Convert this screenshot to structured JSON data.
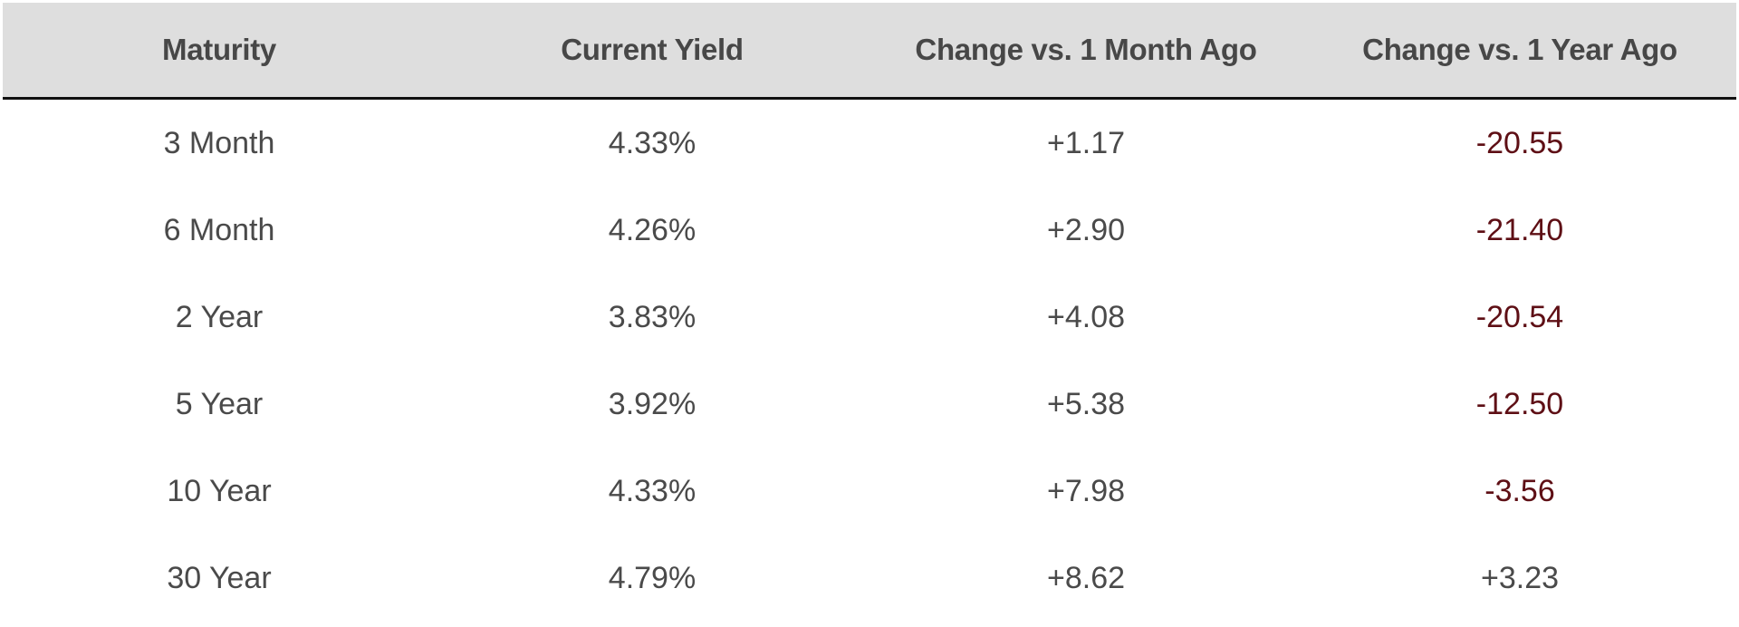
{
  "chart_data": {
    "type": "table",
    "columns": [
      "Maturity",
      "Current Yield",
      "Change vs. 1 Month Ago",
      "Change vs. 1 Year Ago"
    ],
    "rows": [
      {
        "maturity": "3 Month",
        "current_yield": "4.33%",
        "change_1m": "+1.17",
        "change_1y": "-20.55"
      },
      {
        "maturity": "6 Month",
        "current_yield": "4.26%",
        "change_1m": "+2.90",
        "change_1y": "-21.40"
      },
      {
        "maturity": "2 Year",
        "current_yield": "3.83%",
        "change_1m": "+4.08",
        "change_1y": "-20.54"
      },
      {
        "maturity": "5 Year",
        "current_yield": "3.92%",
        "change_1m": "+5.38",
        "change_1y": "-12.50"
      },
      {
        "maturity": "10 Year",
        "current_yield": "4.33%",
        "change_1m": "+7.98",
        "change_1y": "-3.56"
      },
      {
        "maturity": "30 Year",
        "current_yield": "4.79%",
        "change_1m": "+8.62",
        "change_1y": "+3.23"
      }
    ]
  },
  "colors": {
    "header_background": "#dedede",
    "text": "#4a4a4a",
    "negative_text": "#5e0f15",
    "header_rule": "#111111"
  }
}
